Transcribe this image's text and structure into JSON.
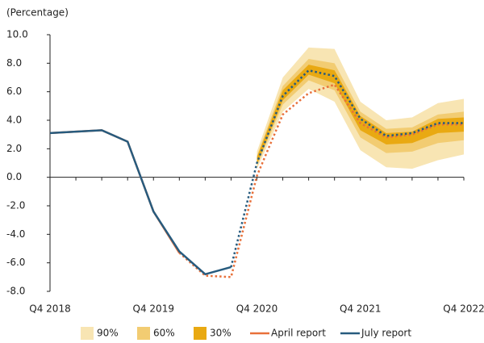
{
  "chart_data": {
    "type": "fan",
    "y_label": "(Percentage)",
    "categories": [
      "Q4 2018",
      null,
      null,
      null,
      "Q4 2019",
      null,
      null,
      null,
      "Q4 2020",
      null,
      null,
      null,
      "Q4 2021",
      null,
      null,
      null,
      "Q4 2022"
    ],
    "ylim": [
      -8,
      10
    ],
    "yticks": [
      {
        "value": 10,
        "label": "10.0"
      },
      {
        "value": 8,
        "label": "8.0"
      },
      {
        "value": 6,
        "label": "6.0"
      },
      {
        "value": 4,
        "label": "4.0"
      },
      {
        "value": 2,
        "label": "2.0"
      },
      {
        "value": 0,
        "label": "0.0"
      },
      {
        "value": -2,
        "label": "-2.0"
      },
      {
        "value": -4,
        "label": "-4.0"
      },
      {
        "value": -6,
        "label": "-6.0"
      },
      {
        "value": -8,
        "label": "-8.0"
      }
    ],
    "bands": [
      {
        "name": "90%",
        "color": "#f8e5b3",
        "lower": [
          null,
          null,
          null,
          null,
          null,
          null,
          null,
          null,
          0.6,
          4.6,
          6.2,
          5.3,
          1.9,
          0.7,
          0.6,
          1.2,
          1.6
        ],
        "upper": [
          null,
          null,
          null,
          null,
          null,
          null,
          null,
          null,
          1.8,
          7.0,
          9.1,
          9.0,
          5.3,
          4.0,
          4.2,
          5.2,
          5.5
        ]
      },
      {
        "name": "60%",
        "color": "#f2cc72",
        "lower": [
          null,
          null,
          null,
          null,
          null,
          null,
          null,
          null,
          0.8,
          5.1,
          6.8,
          6.1,
          2.8,
          1.7,
          1.8,
          2.4,
          2.6
        ],
        "upper": [
          null,
          null,
          null,
          null,
          null,
          null,
          null,
          null,
          1.5,
          6.4,
          8.3,
          8.0,
          4.6,
          3.4,
          3.5,
          4.4,
          4.6
        ]
      },
      {
        "name": "30%",
        "color": "#e9a912",
        "lower": [
          null,
          null,
          null,
          null,
          null,
          null,
          null,
          null,
          0.9,
          5.4,
          7.2,
          6.6,
          3.3,
          2.3,
          2.4,
          3.1,
          3.2
        ],
        "upper": [
          null,
          null,
          null,
          null,
          null,
          null,
          null,
          null,
          1.4,
          6.1,
          7.9,
          7.5,
          4.3,
          3.1,
          3.2,
          4.1,
          4.2
        ]
      }
    ],
    "series": [
      {
        "name": "April report",
        "color": "#e8703a",
        "values": [
          3.1,
          3.2,
          3.3,
          2.5,
          -2.4,
          -5.3,
          -6.9,
          -7.0,
          0.1,
          4.4,
          5.9,
          6.5,
          3.8,
          2.8,
          3.0,
          3.7,
          3.7
        ]
      },
      {
        "name": "July report",
        "color": "#275b7e",
        "values": [
          3.1,
          3.2,
          3.3,
          2.5,
          -2.4,
          -5.2,
          -6.8,
          -6.3,
          1.0,
          5.7,
          7.5,
          7.1,
          4.1,
          2.9,
          3.1,
          3.8,
          3.8
        ]
      }
    ]
  }
}
